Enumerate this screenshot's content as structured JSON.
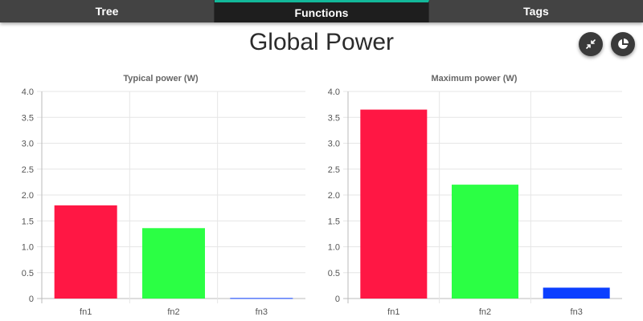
{
  "tabs": [
    {
      "label": "Tree",
      "active": false
    },
    {
      "label": "Functions",
      "active": true
    },
    {
      "label": "Tags",
      "active": false
    }
  ],
  "page_title": "Global Power",
  "actions": [
    {
      "icon": "collapse-arrows-icon"
    },
    {
      "icon": "pie-chart-icon"
    }
  ],
  "colors": {
    "accent": "#13b89a",
    "tab_bg": "#434343",
    "tab_active_bg": "#1e1e1e",
    "fn1": "#ff1744",
    "fn2": "#2bff44",
    "fn3": "#0b3fff"
  },
  "chart_data": [
    {
      "type": "bar",
      "title": "Typical power (W)",
      "categories": [
        "fn1",
        "fn2",
        "fn3"
      ],
      "values": [
        1.8,
        1.36,
        0.01
      ],
      "ylim": [
        0,
        4.0
      ],
      "yticks": [
        "0",
        "0.5",
        "1.0",
        "1.5",
        "2.0",
        "2.5",
        "3.0",
        "3.5",
        "4.0"
      ],
      "grid": true,
      "legend": "none"
    },
    {
      "type": "bar",
      "title": "Maximum power (W)",
      "categories": [
        "fn1",
        "fn2",
        "fn3"
      ],
      "values": [
        3.65,
        2.2,
        0.21
      ],
      "ylim": [
        0,
        4.0
      ],
      "yticks": [
        "0",
        "0.5",
        "1.0",
        "1.5",
        "2.0",
        "2.5",
        "3.0",
        "3.5",
        "4.0"
      ],
      "grid": true,
      "legend": "none"
    }
  ]
}
